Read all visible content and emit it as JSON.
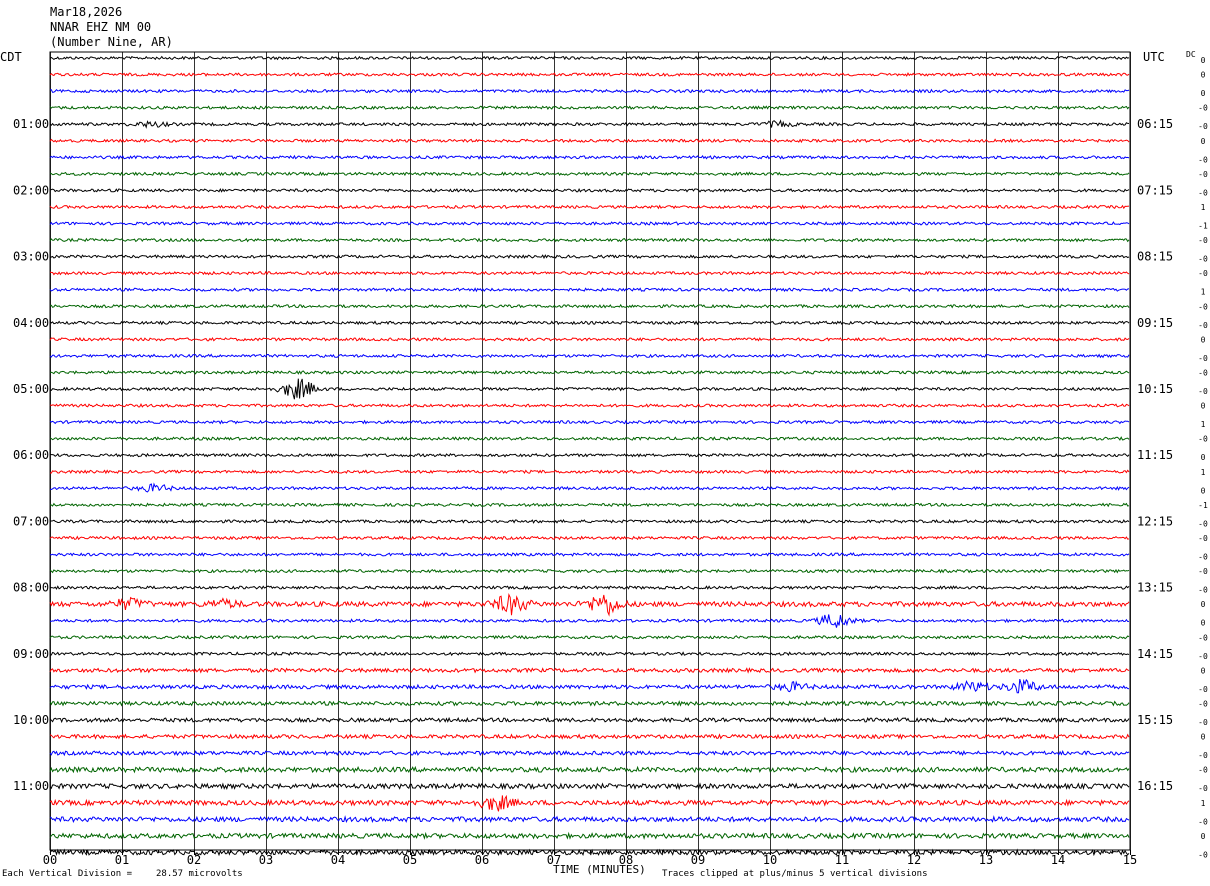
{
  "header": {
    "date": "Mar18,2026",
    "station": "NNAR EHZ NM 00",
    "location": "(Number Nine, AR)"
  },
  "chart_data": {
    "type": "line",
    "left_timezone": "CDT",
    "right_timezone": "UTC",
    "dc_label": "DC",
    "left_labels": [
      "01:00",
      "02:00",
      "03:00",
      "04:00",
      "05:00",
      "06:00",
      "07:00",
      "08:00",
      "09:00",
      "10:00",
      "11:00"
    ],
    "right_labels": [
      "06:15",
      "07:15",
      "08:15",
      "09:15",
      "10:15",
      "11:15",
      "12:15",
      "13:15",
      "14:15",
      "15:15",
      "16:15"
    ],
    "dc_offsets": [
      "0",
      "0",
      "0",
      "-0",
      "-0",
      "0",
      "-0",
      "-0",
      "-0",
      "1",
      "-1",
      "-0",
      "-0",
      "-0",
      "1",
      "-0",
      "-0",
      "0",
      "-0",
      "-0",
      "-0",
      "0",
      "1",
      "-0",
      "0",
      "1",
      "0",
      "-1",
      "-0",
      "-0",
      "-0",
      "-0",
      "-0",
      "0",
      "0",
      "-0",
      "-0",
      "0",
      "-0",
      "-0",
      "-0",
      "0",
      "-0",
      "-0",
      "-0",
      "1",
      "-0",
      "0",
      "-0"
    ],
    "x_ticks": [
      "00",
      "01",
      "02",
      "03",
      "04",
      "05",
      "06",
      "07",
      "08",
      "09",
      "10",
      "11",
      "12",
      "13",
      "14",
      "15"
    ],
    "xlabel": "TIME (MINUTES)",
    "xlim": [
      0,
      15
    ],
    "trace_count": 49,
    "trace_colors": [
      "#000000",
      "#ff0000",
      "#0000ff",
      "#006400"
    ],
    "events": [
      {
        "trace": 4,
        "minute": 1.4,
        "amp": 1.0
      },
      {
        "trace": 4,
        "minute": 10.1,
        "amp": 1.0
      },
      {
        "trace": 20,
        "minute": 3.45,
        "amp": 4.5
      },
      {
        "trace": 26,
        "minute": 1.45,
        "amp": 1.5
      },
      {
        "trace": 33,
        "minute": 1.1,
        "amp": 2.0
      },
      {
        "trace": 33,
        "minute": 2.4,
        "amp": 1.5
      },
      {
        "trace": 33,
        "minute": 6.4,
        "amp": 4.0
      },
      {
        "trace": 33,
        "minute": 7.7,
        "amp": 4.5
      },
      {
        "trace": 34,
        "minute": 10.9,
        "amp": 3.0
      },
      {
        "trace": 38,
        "minute": 10.3,
        "amp": 1.6
      },
      {
        "trace": 38,
        "minute": 12.8,
        "amp": 2.0
      },
      {
        "trace": 38,
        "minute": 13.5,
        "amp": 2.8
      },
      {
        "trace": 45,
        "minute": 6.2,
        "amp": 3.0
      }
    ]
  },
  "footer": {
    "division_label": "Each Vertical Division =",
    "division_value": "28.57 microvolts",
    "clip_note": "Traces clipped at plus/minus 5 vertical divisions"
  }
}
